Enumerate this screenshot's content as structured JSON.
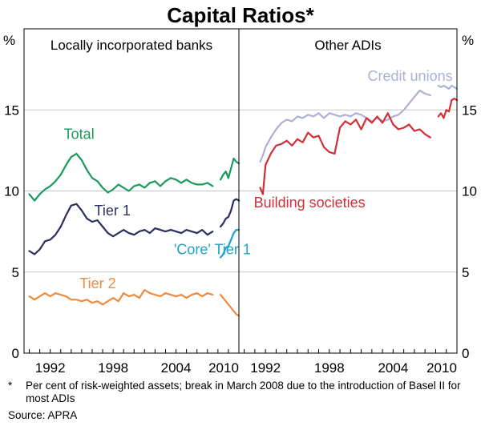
{
  "chart_data": {
    "type": "line",
    "title": "Capital Ratios*",
    "unit_left": "%",
    "unit_right": "%",
    "ylim": [
      0,
      20
    ],
    "yticks": [
      0,
      5,
      10,
      15
    ],
    "xlim": [
      1989.5,
      2010
    ],
    "xticks": [
      "1992",
      "1998",
      "2004",
      "2010"
    ],
    "footnote": "Per cent of risk-weighted assets; break in March 2008 due to the introduction of Basel II for most ADIs",
    "footnote_marker": "*",
    "source": "Source: APRA",
    "panels": [
      {
        "name": "Locally incorporated banks",
        "series": [
          {
            "name": "Total",
            "color": "#1a9a5c",
            "x": [
              1990,
              1990.5,
              1991,
              1991.5,
              1992,
              1992.5,
              1993,
              1993.5,
              1994,
              1994.5,
              1995,
              1995.5,
              1996,
              1996.5,
              1997,
              1997.5,
              1998,
              1998.5,
              1999,
              1999.5,
              2000,
              2000.5,
              2001,
              2001.5,
              2002,
              2002.5,
              2003,
              2003.5,
              2004,
              2004.5,
              2005,
              2005.5,
              2006,
              2006.5,
              2007,
              2007.5
            ],
            "y": [
              9.8,
              9.4,
              9.8,
              10.1,
              10.3,
              10.6,
              11.0,
              11.6,
              12.1,
              12.3,
              11.9,
              11.3,
              10.8,
              10.6,
              10.2,
              9.9,
              10.1,
              10.4,
              10.2,
              10.0,
              10.3,
              10.4,
              10.2,
              10.5,
              10.6,
              10.3,
              10.6,
              10.8,
              10.7,
              10.5,
              10.7,
              10.5,
              10.4,
              10.4,
              10.5,
              10.3
            ]
          },
          {
            "name": "Total",
            "color": "#1a9a5c",
            "x": [
              2008.25,
              2008.5,
              2008.75,
              2009,
              2009.25,
              2009.5,
              2009.75,
              2010
            ],
            "y": [
              10.7,
              11.0,
              11.2,
              10.8,
              11.4,
              12.0,
              11.8,
              11.7
            ]
          },
          {
            "name": "Tier 1",
            "color": "#2b2e5e",
            "x": [
              1990,
              1990.5,
              1991,
              1991.5,
              1992,
              1992.5,
              1993,
              1993.5,
              1994,
              1994.5,
              1995,
              1995.5,
              1996,
              1996.5,
              1997,
              1997.5,
              1998,
              1998.5,
              1999,
              1999.5,
              2000,
              2000.5,
              2001,
              2001.5,
              2002,
              2002.5,
              2003,
              2003.5,
              2004,
              2004.5,
              2005,
              2005.5,
              2006,
              2006.5,
              2007,
              2007.5
            ],
            "y": [
              6.3,
              6.1,
              6.4,
              6.9,
              7.0,
              7.3,
              7.8,
              8.5,
              9.1,
              9.2,
              8.8,
              8.3,
              8.1,
              8.2,
              7.8,
              7.4,
              7.2,
              7.4,
              7.6,
              7.4,
              7.3,
              7.5,
              7.6,
              7.4,
              7.7,
              7.6,
              7.5,
              7.6,
              7.5,
              7.4,
              7.6,
              7.5,
              7.4,
              7.6,
              7.3,
              7.5
            ]
          },
          {
            "name": "Tier 1",
            "color": "#2b2e5e",
            "x": [
              2008.25,
              2008.5,
              2008.75,
              2009,
              2009.25,
              2009.5,
              2009.75,
              2010
            ],
            "y": [
              7.8,
              8.0,
              8.3,
              8.4,
              8.8,
              9.4,
              9.5,
              9.4
            ]
          },
          {
            "name": "'Core' Tier 1",
            "color": "#1ca3c9",
            "x": [
              2008.25,
              2008.5,
              2008.75,
              2009,
              2009.25,
              2009.5,
              2009.75,
              2010
            ],
            "y": [
              5.9,
              6.1,
              6.5,
              6.6,
              7.0,
              7.4,
              7.6,
              7.6
            ]
          },
          {
            "name": "Tier 2",
            "color": "#f08a3c",
            "x": [
              1990,
              1990.5,
              1991,
              1991.5,
              1992,
              1992.5,
              1993,
              1993.5,
              1994,
              1994.5,
              1995,
              1995.5,
              1996,
              1996.5,
              1997,
              1997.5,
              1998,
              1998.5,
              1999,
              1999.5,
              2000,
              2000.5,
              2001,
              2001.5,
              2002,
              2002.5,
              2003,
              2003.5,
              2004,
              2004.5,
              2005,
              2005.5,
              2006,
              2006.5,
              2007,
              2007.5
            ],
            "y": [
              3.5,
              3.3,
              3.5,
              3.7,
              3.5,
              3.7,
              3.6,
              3.5,
              3.3,
              3.3,
              3.2,
              3.3,
              3.1,
              3.2,
              3.0,
              3.2,
              3.4,
              3.2,
              3.7,
              3.5,
              3.6,
              3.4,
              3.9,
              3.7,
              3.6,
              3.5,
              3.7,
              3.6,
              3.5,
              3.6,
              3.4,
              3.6,
              3.7,
              3.5,
              3.7,
              3.6
            ]
          },
          {
            "name": "Tier 2",
            "color": "#f08a3c",
            "x": [
              2008.25,
              2008.5,
              2008.75,
              2009,
              2009.25,
              2009.5,
              2009.75,
              2010
            ],
            "y": [
              3.6,
              3.4,
              3.2,
              3.0,
              2.8,
              2.6,
              2.4,
              2.3
            ]
          }
        ]
      },
      {
        "name": "Other ADIs",
        "series": [
          {
            "name": "Credit unions",
            "color": "#aeb0d4",
            "x": [
              1991.5,
              1991.75,
              1992,
              1992.5,
              1993,
              1993.5,
              1994,
              1994.5,
              1995,
              1995.5,
              1996,
              1996.5,
              1997,
              1997.5,
              1998,
              1998.5,
              1999,
              1999.5,
              2000,
              2000.5,
              2001,
              2001.5,
              2002,
              2002.5,
              2003,
              2003.5,
              2004,
              2004.5,
              2005,
              2005.5,
              2006,
              2006.5,
              2007,
              2007.5
            ],
            "y": [
              11.8,
              12.2,
              12.7,
              13.3,
              13.8,
              14.2,
              14.4,
              14.3,
              14.6,
              14.5,
              14.7,
              14.6,
              14.8,
              14.5,
              14.8,
              14.7,
              14.6,
              14.7,
              14.6,
              14.8,
              14.7,
              14.5,
              14.3,
              14.5,
              14.3,
              14.4,
              14.6,
              14.7,
              15.0,
              15.4,
              15.8,
              16.2,
              16.0,
              15.9
            ]
          },
          {
            "name": "Credit unions",
            "color": "#aeb0d4",
            "x": [
              2008.25,
              2008.5,
              2008.75,
              2009,
              2009.25,
              2009.5,
              2009.75,
              2010
            ],
            "y": [
              16.5,
              16.4,
              16.5,
              16.4,
              16.3,
              16.5,
              16.4,
              16.3
            ]
          },
          {
            "name": "Building societies",
            "color": "#d12f3a",
            "x": [
              1991.5,
              1991.75,
              1992,
              1992.5,
              1993,
              1993.5,
              1994,
              1994.5,
              1995,
              1995.5,
              1996,
              1996.5,
              1997,
              1997.5,
              1998,
              1998.5,
              1999,
              1999.5,
              2000,
              2000.5,
              2001,
              2001.5,
              2002,
              2002.5,
              2003,
              2003.5,
              2004,
              2004.5,
              2005,
              2005.5,
              2006,
              2006.5,
              2007,
              2007.5
            ],
            "y": [
              10.2,
              9.8,
              11.6,
              12.3,
              12.8,
              12.9,
              13.1,
              12.8,
              13.2,
              13.0,
              13.6,
              13.3,
              13.4,
              12.7,
              12.4,
              12.3,
              13.9,
              14.3,
              14.1,
              14.4,
              13.8,
              14.5,
              14.2,
              14.6,
              14.2,
              14.8,
              14.1,
              13.8,
              13.9,
              14.1,
              13.7,
              13.8,
              13.5,
              13.3
            ]
          },
          {
            "name": "Building societies",
            "color": "#d12f3a",
            "x": [
              2008.25,
              2008.5,
              2008.75,
              2009,
              2009.25,
              2009.5,
              2009.75,
              2010
            ],
            "y": [
              14.6,
              14.8,
              14.5,
              15.0,
              14.9,
              15.6,
              15.7,
              15.6
            ]
          }
        ]
      }
    ],
    "labels": [
      {
        "text": "Total",
        "panel": 0,
        "x": 1993.3,
        "y": 13.2,
        "color": "#1a9a5c"
      },
      {
        "text": "Tier 1",
        "panel": 0,
        "x": 1996.2,
        "y": 8.5,
        "color": "#2b2e5e"
      },
      {
        "text": "'Core' Tier 1",
        "panel": 0,
        "x": 2003.8,
        "y": 6.1,
        "color": "#1ca3c9"
      },
      {
        "text": "Tier 2",
        "panel": 0,
        "x": 1994.8,
        "y": 4.0,
        "color": "#f08a3c"
      },
      {
        "text": "Credit unions",
        "panel": 1,
        "x": 2001.6,
        "y": 16.8,
        "color": "#aeb0d4"
      },
      {
        "text": "Building societies",
        "panel": 1,
        "x": 1990.9,
        "y": 9.0,
        "color": "#d12f3a"
      }
    ]
  }
}
